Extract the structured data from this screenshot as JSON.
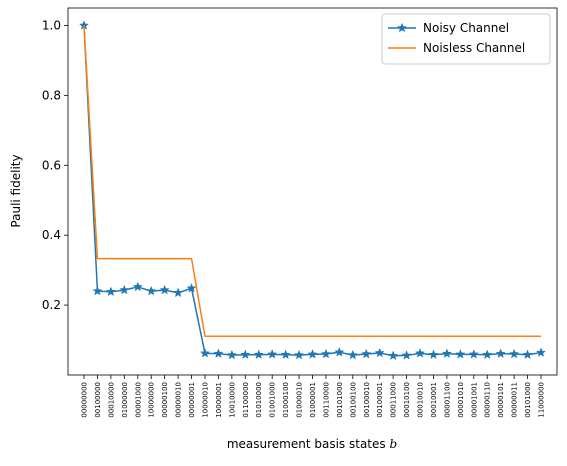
{
  "chart_data": {
    "type": "line",
    "title": "",
    "xlabel": "measurement basis states $b$",
    "xlabel_parts": {
      "text": "measurement basis states ",
      "math": "b"
    },
    "ylabel": "Pauli fidelity",
    "ylim": [
      0.0,
      1.05
    ],
    "yticks": [
      0.2,
      0.4,
      0.6,
      0.8,
      1.0
    ],
    "ytick_labels": [
      "0.2",
      "0.4",
      "0.6",
      "0.8",
      "1.0"
    ],
    "grid": false,
    "legend_position": "top-right",
    "categories": [
      "00000000",
      "00100000",
      "00010000",
      "01000000",
      "00001000",
      "10000000",
      "00000100",
      "00000010",
      "00000001",
      "10000010",
      "10000001",
      "10010000",
      "01100000",
      "01010000",
      "01001000",
      "01000100",
      "01000010",
      "01000001",
      "00110000",
      "00101000",
      "00100100",
      "00100010",
      "00100001",
      "00011000",
      "00010100",
      "00010010",
      "00010001",
      "00001100",
      "00001010",
      "00001001",
      "00000110",
      "00000101",
      "00000011",
      "00101000",
      "11000000"
    ],
    "series": [
      {
        "name": "Noisy Channel",
        "color": "#1f77b4",
        "marker": "star",
        "values": [
          1.0,
          0.24,
          0.238,
          0.243,
          0.252,
          0.24,
          0.243,
          0.235,
          0.248,
          0.062,
          0.061,
          0.057,
          0.058,
          0.058,
          0.059,
          0.058,
          0.057,
          0.059,
          0.06,
          0.065,
          0.057,
          0.06,
          0.063,
          0.055,
          0.056,
          0.062,
          0.058,
          0.061,
          0.059,
          0.059,
          0.058,
          0.061,
          0.06,
          0.058,
          0.064
        ]
      },
      {
        "name": "Noisless Channel",
        "color": "#ff7f0e",
        "marker": "none",
        "values": [
          1.0,
          0.333,
          0.333,
          0.333,
          0.333,
          0.333,
          0.333,
          0.333,
          0.333,
          0.111,
          0.111,
          0.111,
          0.111,
          0.111,
          0.111,
          0.111,
          0.111,
          0.111,
          0.111,
          0.111,
          0.111,
          0.111,
          0.111,
          0.111,
          0.111,
          0.111,
          0.111,
          0.111,
          0.111,
          0.111,
          0.111,
          0.111,
          0.111,
          0.111,
          0.111
        ]
      }
    ]
  }
}
